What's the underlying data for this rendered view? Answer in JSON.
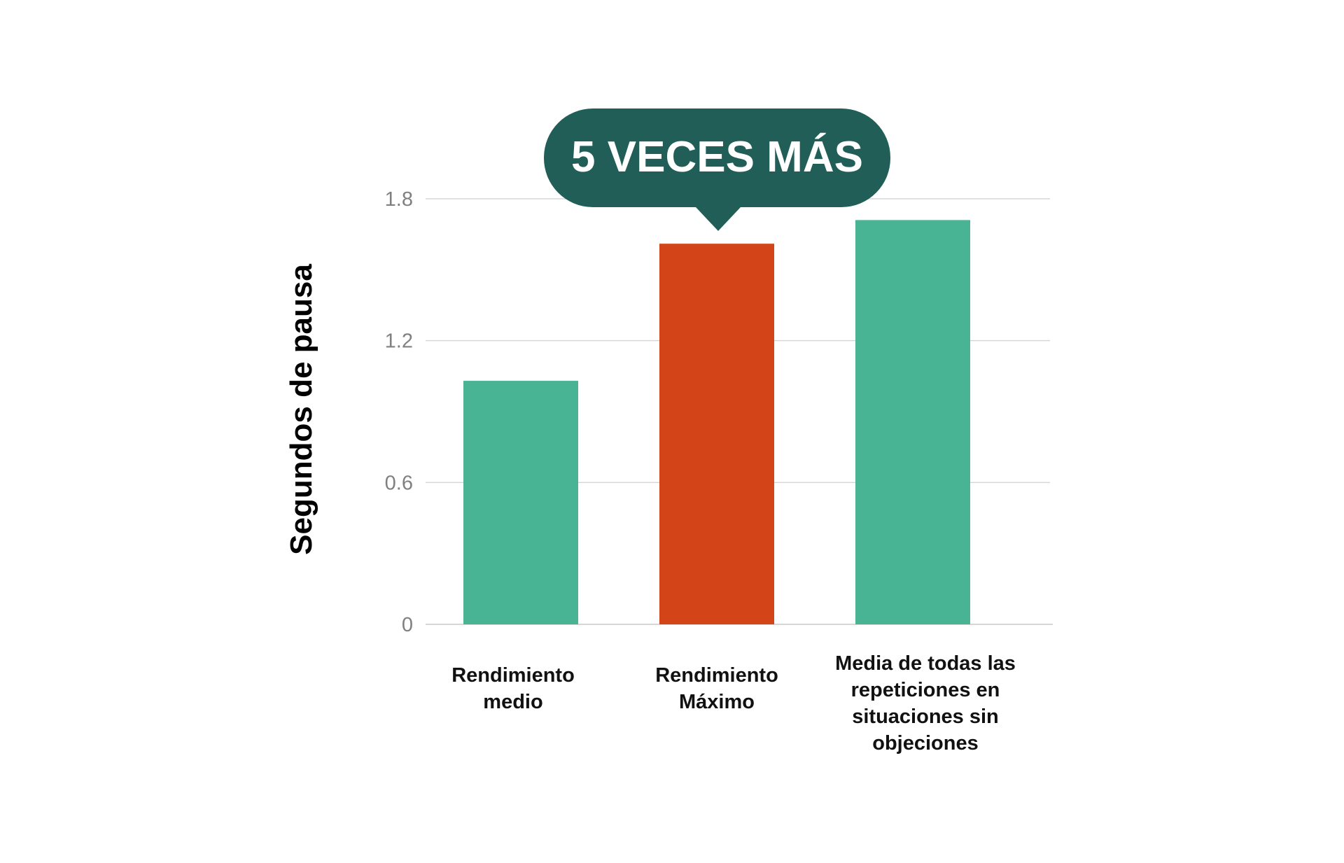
{
  "chart_data": {
    "type": "bar",
    "title": "",
    "xlabel": "",
    "ylabel": "Segundos de pausa",
    "ylim": [
      0,
      1.8
    ],
    "yticks": [
      "0",
      "0.6",
      "1.2",
      "1.8"
    ],
    "grid": true,
    "categories": [
      "Rendimiento medio",
      "Rendimiento Máximo",
      "Media de todas las repeticiones en situaciones sin objeciones"
    ],
    "category_lines": [
      [
        "Rendimiento",
        "medio"
      ],
      [
        "Rendimiento",
        "Máximo"
      ],
      [
        "Media de todas las",
        "repeticiones en",
        "situaciones sin",
        "objeciones"
      ]
    ],
    "values": [
      1.03,
      1.61,
      1.71
    ],
    "colors": [
      "#48b494",
      "#d34518",
      "#48b494"
    ],
    "annotation": {
      "text": "5 VECES MÁS",
      "target_category": "Rendimiento Máximo",
      "color": "#215e58"
    },
    "gridline_color": "#d6d6d6"
  }
}
